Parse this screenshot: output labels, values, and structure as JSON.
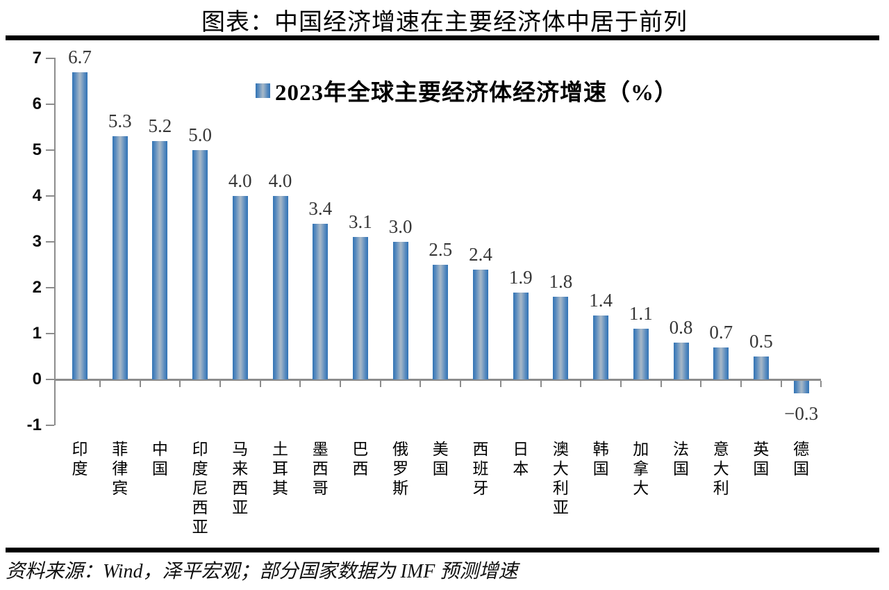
{
  "title": "图表：中国经济增速在主要经济体中居于前列",
  "source": "资料来源：Wind，泽平宏观；部分国家数据为 IMF 预测增速",
  "chart_data": {
    "type": "bar",
    "title": "图表：中国经济增速在主要经济体中居于前列",
    "legend": "2023年全球主要经济体经济增速（%）",
    "legend_position": "top-center",
    "grid": false,
    "categories": [
      "印度",
      "菲律宾",
      "中国",
      "印度尼西亚",
      "马来西亚",
      "土耳其",
      "墨西哥",
      "巴西",
      "俄罗斯",
      "美国",
      "西班牙",
      "日本",
      "澳大利亚",
      "韩国",
      "加拿大",
      "法国",
      "意大利",
      "英国",
      "德国"
    ],
    "values": [
      6.7,
      5.3,
      5.2,
      5.0,
      4.0,
      4.0,
      3.4,
      3.1,
      3.0,
      2.5,
      2.4,
      1.9,
      1.8,
      1.4,
      1.1,
      0.8,
      0.7,
      0.5,
      -0.3
    ],
    "value_labels": [
      "6.7",
      "5.3",
      "5.2",
      "5.0",
      "4.0",
      "4.0",
      "3.4",
      "3.1",
      "3.0",
      "2.5",
      "2.4",
      "1.9",
      "1.8",
      "1.4",
      "1.1",
      "0.8",
      "0.7",
      "0.5",
      "−0.3"
    ],
    "ylim": [
      -1,
      7
    ],
    "yticks": [
      7,
      6,
      5,
      4,
      3,
      2,
      1,
      0,
      -1
    ],
    "xlabel": "",
    "ylabel": "",
    "colors": {
      "bar_edge": "#3273b4",
      "bar_mid": "#a4b6c7",
      "axis": "#8c8c8c",
      "value_label": "#363636",
      "text": "#000000"
    }
  }
}
